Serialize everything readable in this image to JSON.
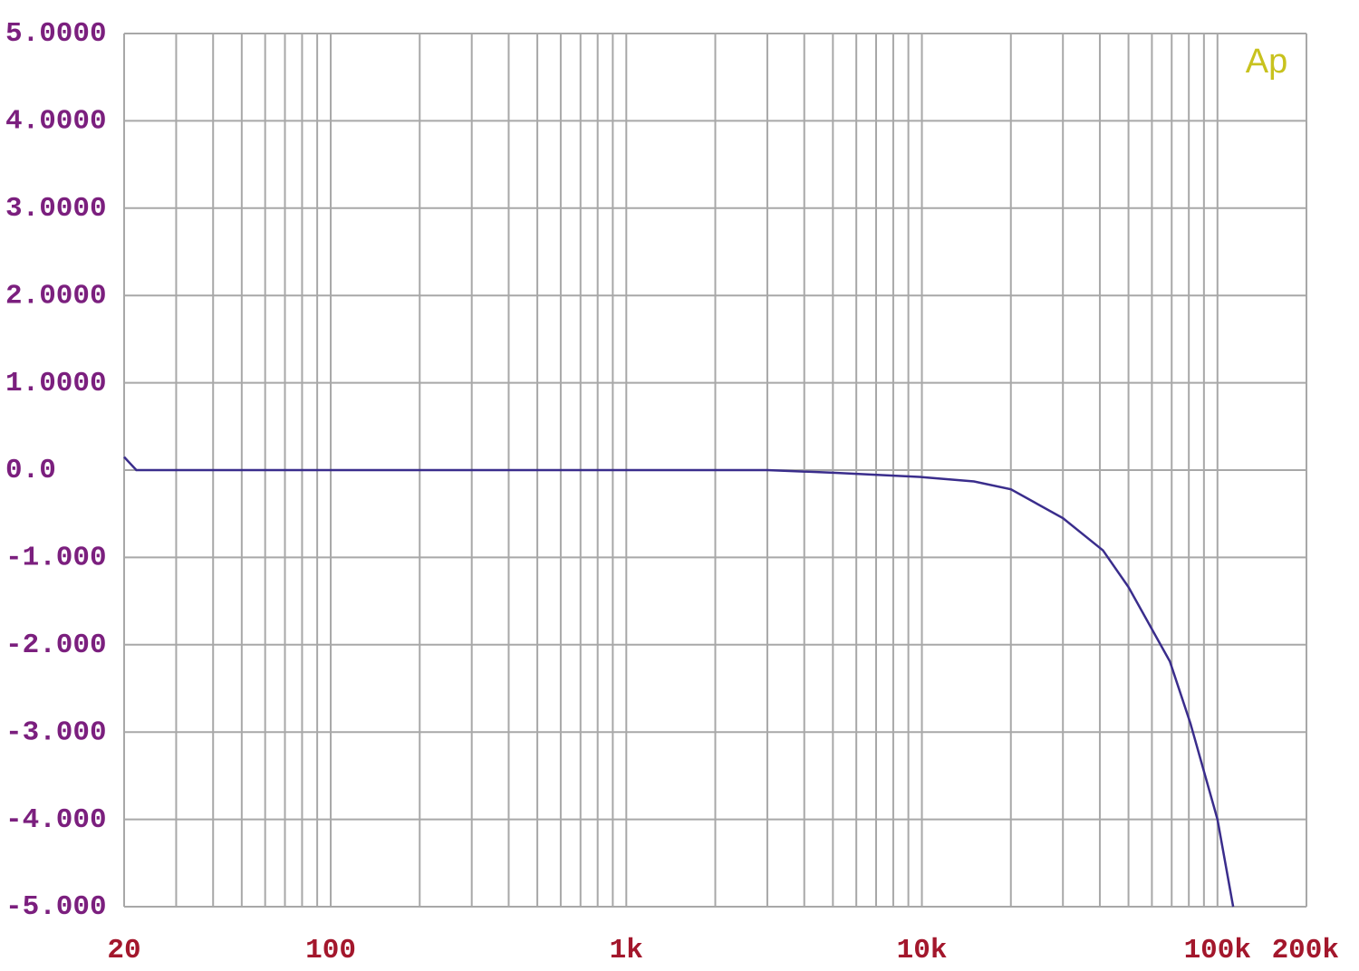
{
  "chart_data": {
    "type": "line",
    "logo": "Ap",
    "xscale": "log",
    "grid": true,
    "xlim": [
      20,
      200000
    ],
    "ylim": [
      -5,
      5
    ],
    "xticks": [
      20,
      100,
      {
        "value": 1000,
        "label": "1k"
      },
      {
        "value": 10000,
        "label": "10k"
      },
      {
        "value": 100000,
        "label": "100k"
      },
      {
        "value": 200000,
        "label": "200k"
      }
    ],
    "xgrid_minor": [
      30,
      40,
      50,
      60,
      70,
      80,
      90,
      200,
      300,
      400,
      500,
      600,
      700,
      800,
      900,
      2000,
      3000,
      4000,
      5000,
      6000,
      7000,
      8000,
      9000,
      20000,
      30000,
      40000,
      50000,
      60000,
      70000,
      80000,
      90000
    ],
    "yticks": [
      {
        "value": 5,
        "label": "5.0000"
      },
      {
        "value": 4,
        "label": "4.0000"
      },
      {
        "value": 3,
        "label": "3.0000"
      },
      {
        "value": 2,
        "label": "2.0000"
      },
      {
        "value": 1,
        "label": "1.0000"
      },
      {
        "value": 0,
        "label": "0.0"
      },
      {
        "value": -1,
        "label": "-1.000"
      },
      {
        "value": -2,
        "label": "-2.000"
      },
      {
        "value": -3,
        "label": "-3.000"
      },
      {
        "value": -4,
        "label": "-4.000"
      },
      {
        "value": -5,
        "label": "-5.000"
      }
    ],
    "x": [
      20,
      22,
      30,
      100,
      1000,
      3000,
      5000,
      10000,
      15000,
      20000,
      30000,
      41000,
      50000,
      69000,
      81000,
      100000,
      113000
    ],
    "series": [
      {
        "color": "#3a2d8c",
        "values": [
          0.15,
          0,
          0,
          0,
          0,
          0,
          -0.03,
          -0.08,
          -0.13,
          -0.22,
          -0.55,
          -0.92,
          -1.34,
          -2.19,
          -2.9,
          -4.0,
          -5.0
        ]
      }
    ]
  }
}
